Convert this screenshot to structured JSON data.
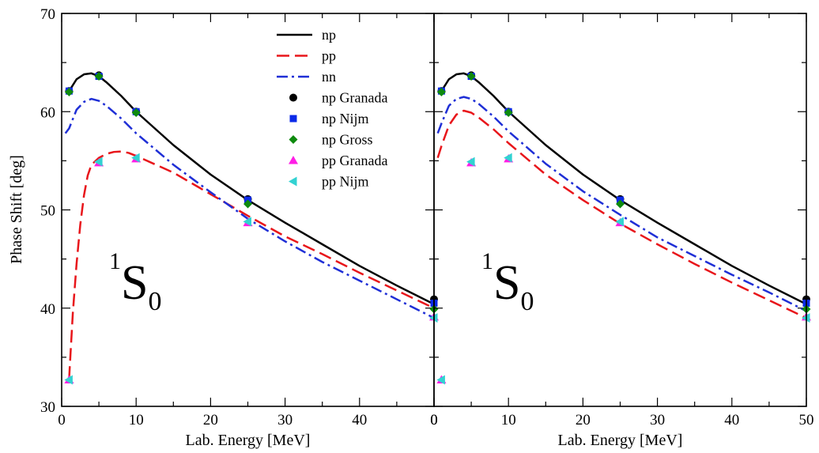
{
  "chart_data": {
    "type": "line",
    "ylabel": "Phase Shift [deg]",
    "ylim": [
      30,
      70
    ],
    "yticks": [
      "30",
      "40",
      "50",
      "60",
      "70"
    ],
    "grid": false,
    "legend_position": "top-center",
    "series_styles": {
      "np": {
        "color": "#000000",
        "dash": "solid"
      },
      "pp": {
        "color": "#e8161b",
        "dash": "dashed"
      },
      "nn": {
        "color": "#1f2fd6",
        "dash": "dash-dot"
      },
      "np Granada": {
        "color": "#000000",
        "marker": "circle"
      },
      "np Nijm": {
        "color": "#0b2ae8",
        "marker": "square"
      },
      "np Gross": {
        "color": "#0e8a0e",
        "marker": "diamond"
      },
      "pp Granada": {
        "color": "#ff1ee6",
        "marker": "triangle-up"
      },
      "pp Nijm": {
        "color": "#32d2d2",
        "marker": "triangle-left"
      }
    },
    "legend": [
      "np",
      "pp",
      "nn",
      "np Granada",
      "np Nijm",
      "np Gross",
      "pp Granada",
      "pp Nijm"
    ],
    "panels": [
      {
        "xlabel": "Lab. Energy [MeV]",
        "xlim": [
          0,
          50
        ],
        "xticks": [
          "0",
          "10",
          "20",
          "30",
          "40",
          "0"
        ],
        "annotation": {
          "sup": "1",
          "main": "S",
          "sub": "0"
        },
        "lines": [
          {
            "name": "np",
            "x": [
              1,
              2,
              3,
              4,
              5,
              6,
              8,
              10,
              15,
              20,
              25,
              30,
              35,
              40,
              45,
              50
            ],
            "y": [
              62.1,
              63.3,
              63.8,
              63.9,
              63.6,
              63.0,
              61.6,
              60.0,
              56.6,
              53.6,
              51.0,
              48.7,
              46.5,
              44.3,
              42.3,
              40.4
            ]
          },
          {
            "name": "pp",
            "x": [
              1,
              1.2,
              1.5,
              2,
              2.5,
              3,
              3.5,
              4,
              5,
              6,
              7,
              8,
              9,
              10,
              15,
              20,
              25,
              30,
              35,
              40,
              45,
              50
            ],
            "y": [
              32.8,
              35.5,
              39.5,
              44.5,
              48.5,
              51.5,
              53.5,
              54.6,
              55.3,
              55.7,
              55.9,
              55.95,
              55.8,
              55.5,
              53.8,
              51.6,
              49.4,
              47.3,
              45.5,
              43.6,
              41.8,
              40.0
            ]
          },
          {
            "name": "nn",
            "x": [
              0.5,
              1,
              2,
              3,
              4,
              5,
              6,
              8,
              10,
              15,
              20,
              25,
              30,
              35,
              40,
              45,
              50
            ],
            "y": [
              57.8,
              58.3,
              60.2,
              61.0,
              61.3,
              61.1,
              60.6,
              59.3,
              57.8,
              54.6,
              51.8,
              49.1,
              46.8,
              44.7,
              42.8,
              40.9,
              39.0
            ]
          }
        ],
        "points": [
          {
            "name": "np Granada",
            "x": [
              1,
              5,
              10,
              25,
              50
            ],
            "y": [
              62.1,
              63.7,
              60.0,
              51.1,
              40.9
            ]
          },
          {
            "name": "np Nijm",
            "x": [
              1,
              5,
              10,
              25,
              50
            ],
            "y": [
              62.1,
              63.6,
              60.0,
              51.0,
              40.5
            ]
          },
          {
            "name": "np Gross",
            "x": [
              1,
              5,
              10,
              25,
              50
            ],
            "y": [
              62.0,
              63.6,
              59.9,
              50.6,
              39.9
            ]
          },
          {
            "name": "pp Granada",
            "x": [
              1,
              5,
              10,
              25,
              50
            ],
            "y": [
              32.7,
              54.8,
              55.2,
              48.7,
              39.1
            ]
          },
          {
            "name": "pp Nijm",
            "x": [
              1,
              5,
              10,
              25,
              50
            ],
            "y": [
              32.7,
              54.9,
              55.3,
              48.8,
              39.0
            ]
          }
        ]
      },
      {
        "xlabel": "Lab. Energy [MeV]",
        "xlim": [
          0,
          50
        ],
        "xticks": [
          "0",
          "10",
          "20",
          "30",
          "40",
          "50"
        ],
        "annotation": {
          "sup": "1",
          "main": "S",
          "sub": "0"
        },
        "lines": [
          {
            "name": "np",
            "x": [
              1,
              2,
              3,
              4,
              5,
              6,
              8,
              10,
              15,
              20,
              25,
              30,
              35,
              40,
              45,
              50
            ],
            "y": [
              62.1,
              63.3,
              63.8,
              63.9,
              63.6,
              63.0,
              61.6,
              60.0,
              56.6,
              53.6,
              51.0,
              48.7,
              46.5,
              44.3,
              42.3,
              40.4
            ]
          },
          {
            "name": "pp",
            "x": [
              0.5,
              1,
              2,
              3,
              4,
              5,
              6,
              8,
              10,
              15,
              20,
              25,
              30,
              35,
              40,
              45,
              50
            ],
            "y": [
              55.3,
              56.5,
              58.6,
              59.7,
              60.1,
              59.9,
              59.4,
              58.2,
              56.8,
              53.6,
              51.0,
              48.6,
              46.5,
              44.5,
              42.6,
              40.8,
              39.0
            ]
          },
          {
            "name": "nn",
            "x": [
              0.5,
              1,
              2,
              3,
              4,
              5,
              6,
              8,
              10,
              15,
              20,
              25,
              30,
              35,
              40,
              45,
              50
            ],
            "y": [
              57.8,
              58.8,
              60.6,
              61.3,
              61.5,
              61.3,
              60.8,
              59.5,
              58.0,
              54.7,
              51.9,
              49.5,
              47.2,
              45.3,
              43.4,
              41.6,
              39.7
            ]
          }
        ],
        "points": [
          {
            "name": "np Granada",
            "x": [
              1,
              5,
              10,
              25,
              50
            ],
            "y": [
              62.1,
              63.7,
              60.0,
              51.1,
              40.9
            ]
          },
          {
            "name": "np Nijm",
            "x": [
              1,
              5,
              10,
              25,
              50
            ],
            "y": [
              62.1,
              63.6,
              60.0,
              51.0,
              40.5
            ]
          },
          {
            "name": "np Gross",
            "x": [
              1,
              5,
              10,
              25,
              50
            ],
            "y": [
              62.0,
              63.6,
              59.9,
              50.6,
              39.9
            ]
          },
          {
            "name": "pp Granada",
            "x": [
              1,
              5,
              10,
              25,
              50
            ],
            "y": [
              32.7,
              54.8,
              55.2,
              48.7,
              39.1
            ]
          },
          {
            "name": "pp Nijm",
            "x": [
              1,
              5,
              10,
              25,
              50
            ],
            "y": [
              32.7,
              54.9,
              55.3,
              48.8,
              39.0
            ]
          }
        ]
      }
    ]
  }
}
